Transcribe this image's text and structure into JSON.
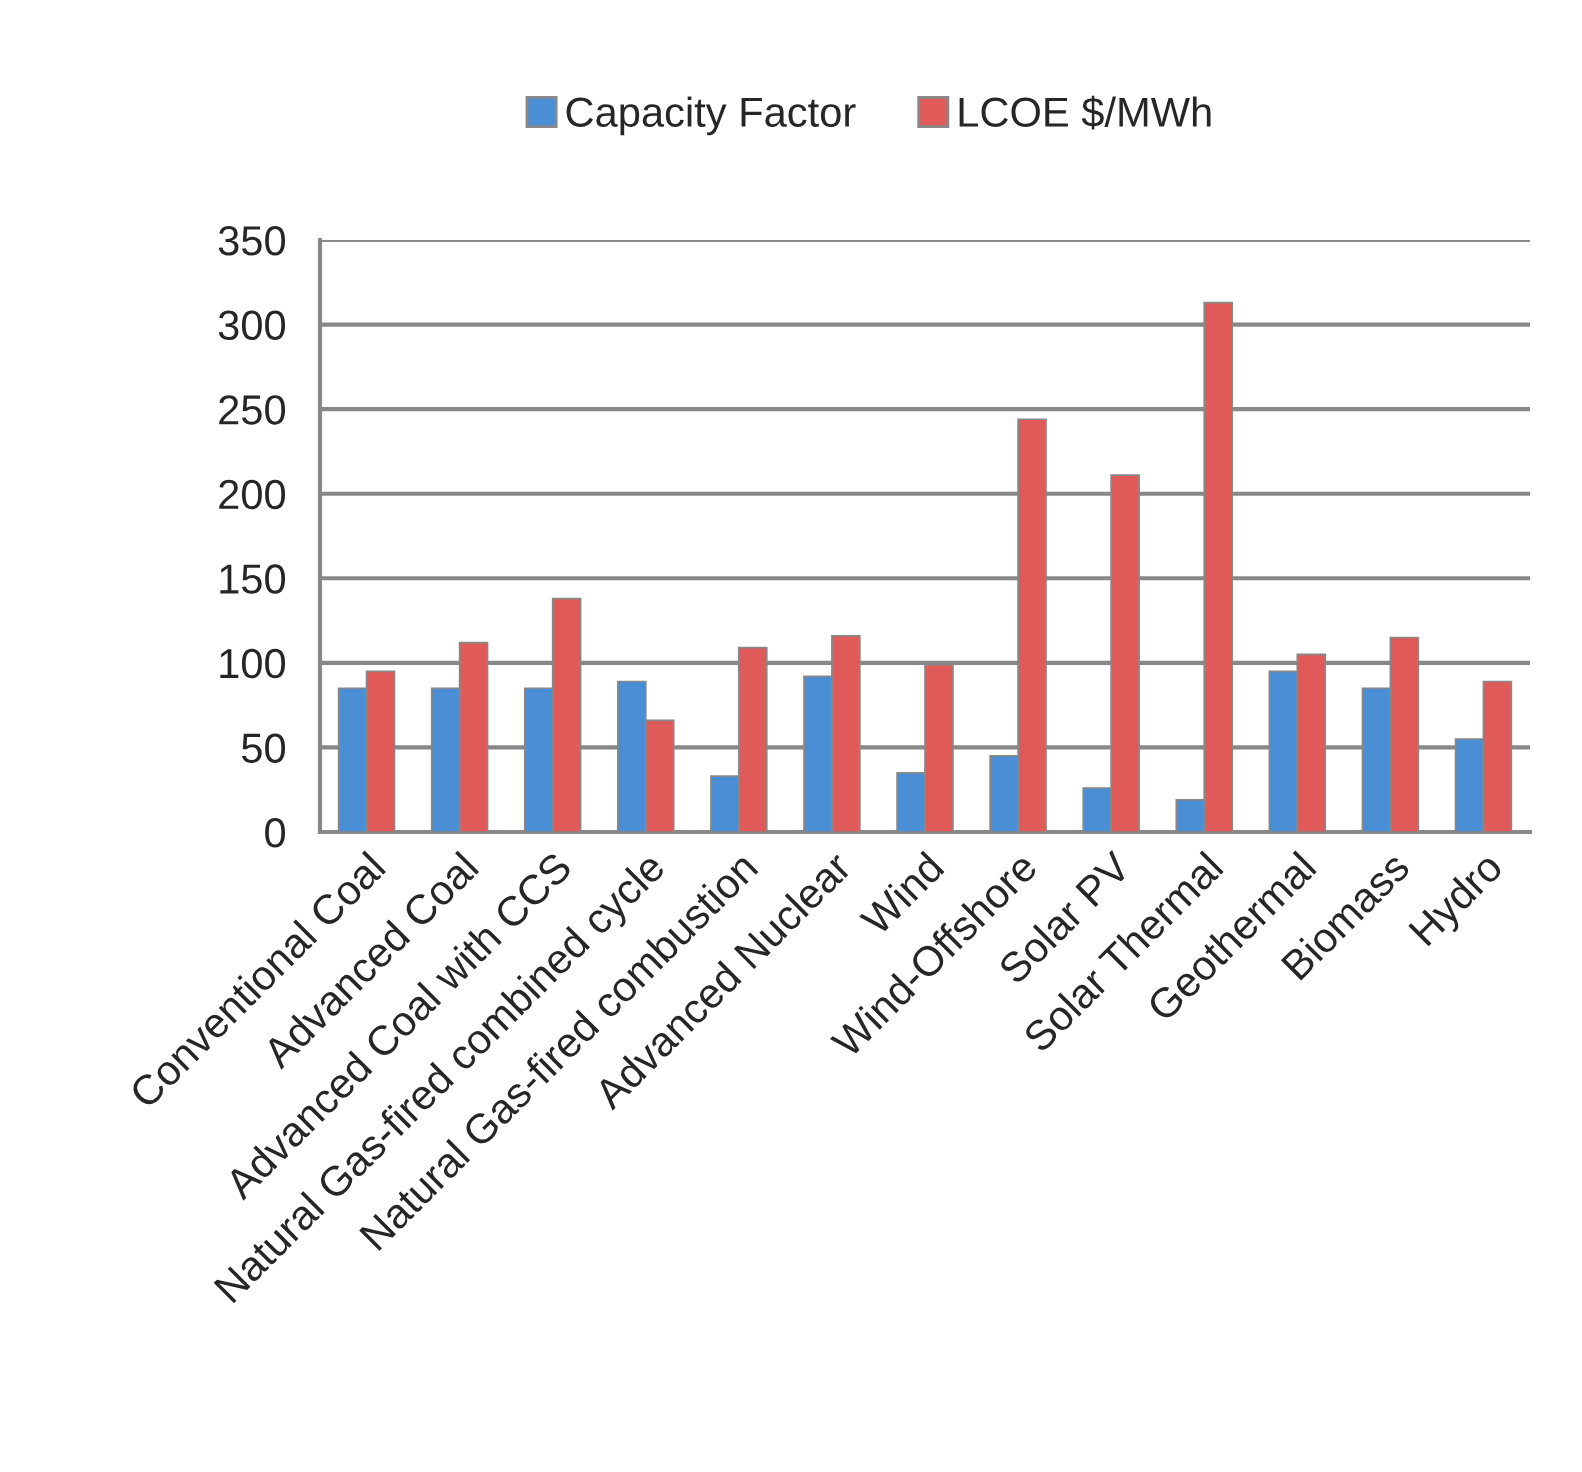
{
  "chart_data": {
    "type": "bar",
    "categories": [
      "Conventional Coal",
      "Advanced Coal",
      "Advanced Coal with CCS",
      "Natural Gas-fired combined cycle",
      "Natural Gas-fired combustion",
      "Advanced Nuclear",
      "Wind",
      "Wind-Offshore",
      "Solar PV",
      "Solar Thermal",
      "Geothermal",
      "Biomass",
      "Hydro"
    ],
    "series": [
      {
        "name": "Capacity Factor",
        "color": "#4a8fd6",
        "values": [
          85,
          85,
          85,
          89,
          33,
          92,
          35,
          45,
          26,
          19,
          95,
          85,
          55
        ]
      },
      {
        "name": "LCOE $/MWh",
        "color": "#e05a5a",
        "values": [
          95,
          112,
          138,
          66,
          109,
          116,
          99,
          244,
          211,
          313,
          105,
          115,
          89
        ]
      }
    ],
    "ylim": [
      0,
      350
    ],
    "yticks": [
      0,
      50,
      100,
      150,
      200,
      250,
      300,
      350
    ],
    "grid": "y",
    "legend": "top"
  }
}
